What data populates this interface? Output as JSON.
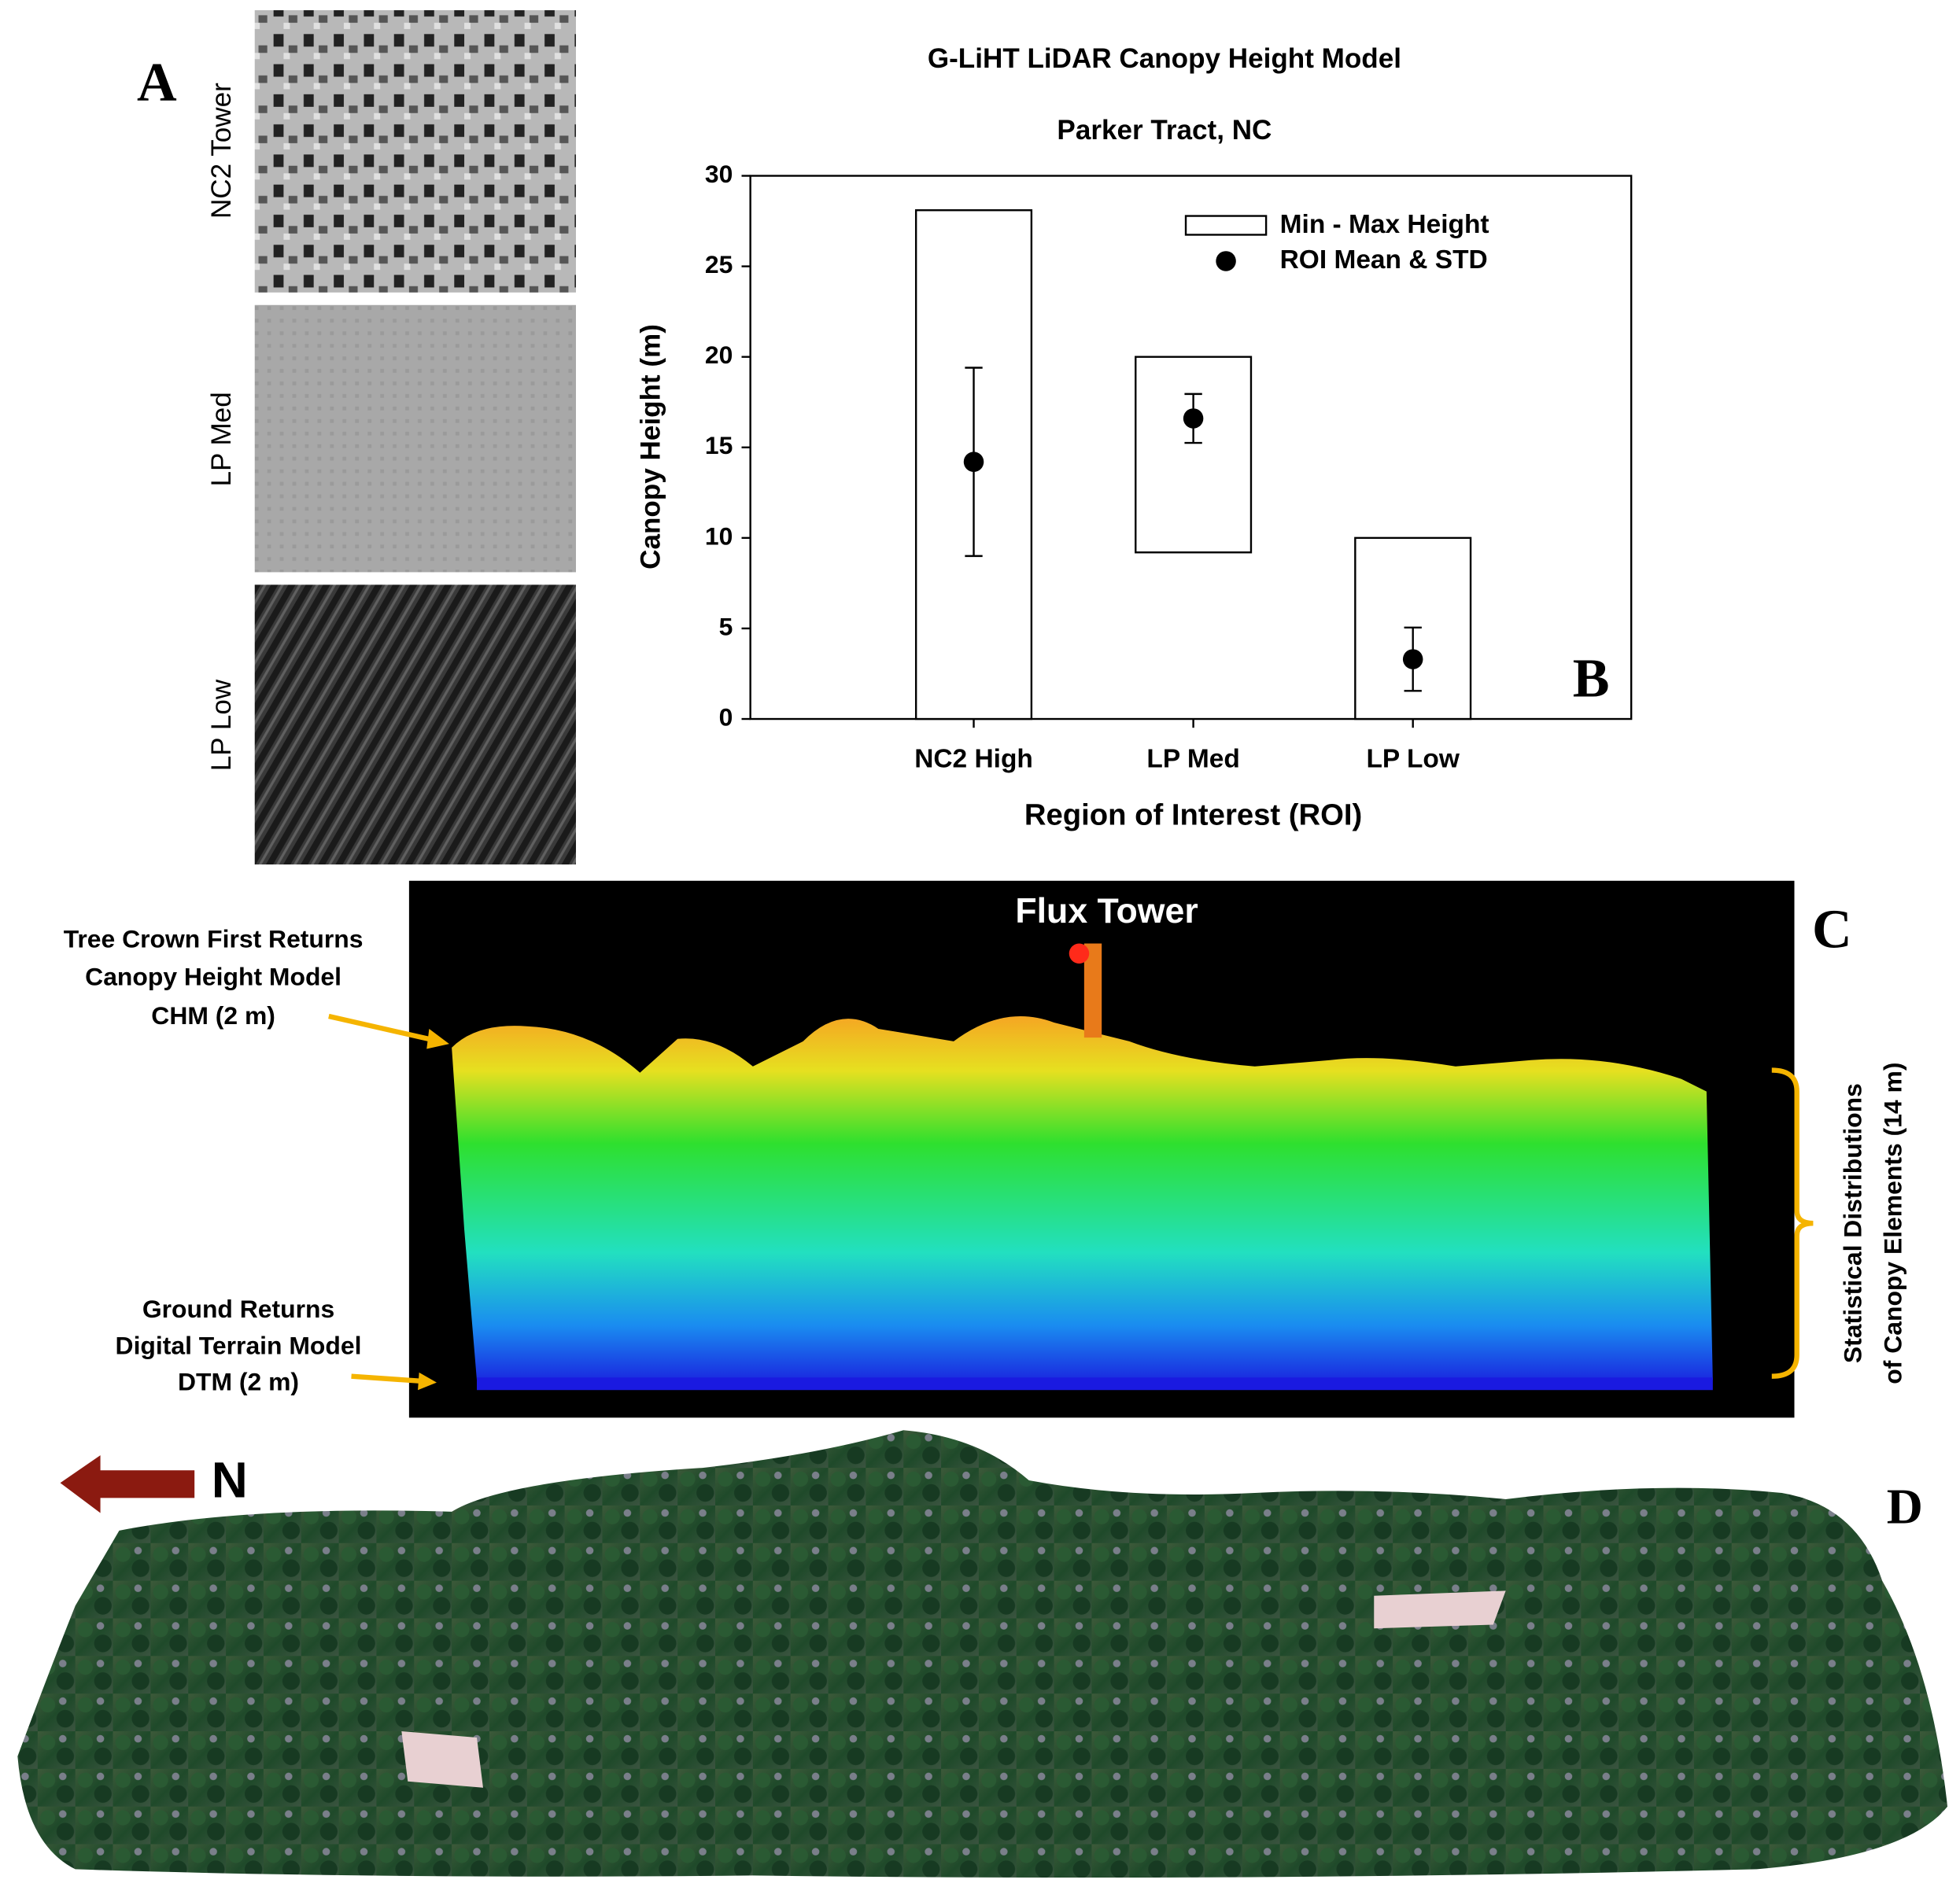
{
  "chart_data": {
    "type": "range",
    "title": "G-LiHT LiDAR Canopy Height Model",
    "subtitle": "Parker Tract, NC",
    "panel_label": "B",
    "x_label": "Region of Interest (ROI)",
    "y_label": "Canopy Height (m)",
    "categories": [
      "NC2 High",
      "LP Med",
      "LP Low"
    ],
    "series": [
      {
        "name": "Min - Max Height",
        "color": "#ffffff",
        "low": [
          0,
          9.2,
          0
        ],
        "values": [
          28.1,
          20,
          10
        ]
      },
      {
        "name": "ROI Mean & STD",
        "color": "#000000",
        "values": [
          14.2,
          16.6,
          3.3
        ],
        "errors": [
          5.2,
          1.35,
          1.75
        ]
      }
    ],
    "ylim": [
      0,
      30
    ],
    "yticks": [
      0,
      5,
      10,
      15,
      20,
      25,
      30
    ],
    "grid": false,
    "legend": "upper right"
  },
  "figure": {
    "panel_a": {
      "label": "A",
      "images": [
        "NC2 Tower",
        "LP Med",
        "LP Low"
      ]
    },
    "panel_c": {
      "label": "C",
      "title": "Flux Tower",
      "top_note": [
        "Tree Crown First Returns",
        "Canopy Height Model",
        "CHM (2 m)"
      ],
      "bottom_note": [
        "Ground Returns",
        "Digital Terrain Model",
        "DTM (2 m)"
      ],
      "side_note": [
        "Statistical Distributions",
        "of Canopy Elements (14 m)"
      ]
    },
    "panel_d": {
      "label": "D",
      "north": "N"
    }
  }
}
